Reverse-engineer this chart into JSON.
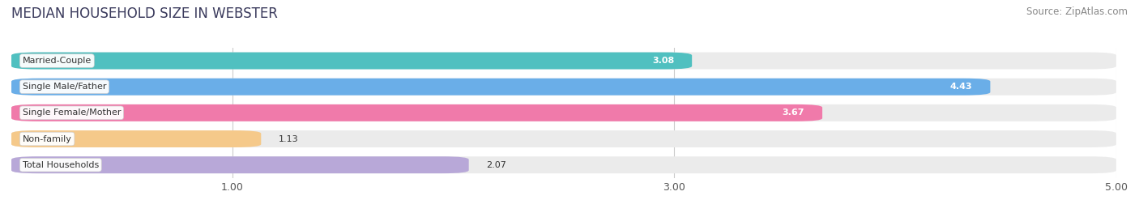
{
  "title": "MEDIAN HOUSEHOLD SIZE IN WEBSTER",
  "source": "Source: ZipAtlas.com",
  "categories": [
    "Married-Couple",
    "Single Male/Father",
    "Single Female/Mother",
    "Non-family",
    "Total Households"
  ],
  "values": [
    3.08,
    4.43,
    3.67,
    1.13,
    2.07
  ],
  "bar_colors": [
    "#50C0C0",
    "#6AAEE8",
    "#F07AAA",
    "#F5C98A",
    "#B8A8D8"
  ],
  "xmin": 0.0,
  "xmax": 5.0,
  "xticks": [
    1.0,
    3.0,
    5.0
  ],
  "background_color": "#ffffff",
  "bar_bg_color": "#ebebeb",
  "title_fontsize": 12,
  "source_fontsize": 8.5,
  "label_fontsize": 8,
  "value_fontsize": 8,
  "value_inside_threshold": 2.5,
  "bar_height": 0.65,
  "bar_gap": 0.35
}
